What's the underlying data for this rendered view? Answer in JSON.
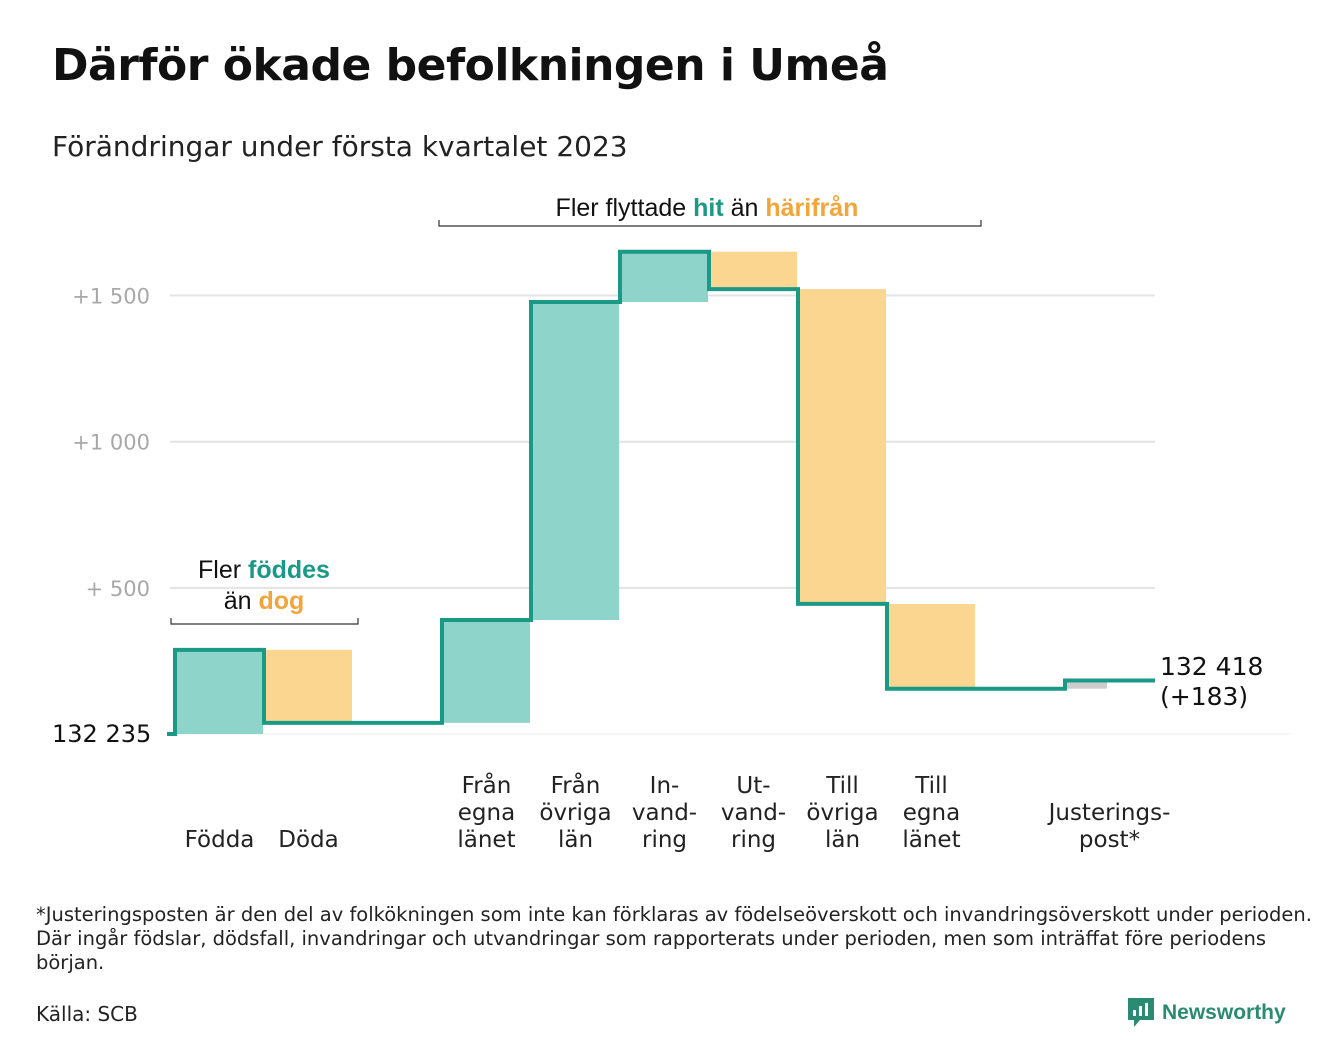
{
  "title": "Därför ökade befolkningen i Umeå",
  "subtitle": "Förändringar under första kvartalet 2023",
  "footnote": "*Justeringsposten är den del av folkökningen som inte kan förklaras av födelseöverskott och invandringsöverskott under perioden. Där ingår födslar, dödsfall, invandringar och utvandringar som rapporterats under perioden, men som inträffat före periodens början.",
  "source": "Källa: SCB",
  "brand": "Newsworthy",
  "colors": {
    "increase": "#8fd4ca",
    "decrease": "#fbd690",
    "line": "#1a9a86",
    "adjustment": "#cccccc",
    "grid": "#e3e3e3",
    "tick_text": "#a8a8a8",
    "highlight_hit": "#1a9a86",
    "highlight_from": "#f2a53a"
  },
  "chart_data": {
    "type": "waterfall",
    "baseline_label": "132 235",
    "end_label_line1": "132 418",
    "end_label_line2": "(+183)",
    "ylim": [
      0,
      1650
    ],
    "yticks": [
      {
        "value": 500,
        "label": "+ 500"
      },
      {
        "value": 1000,
        "label": "+1 000"
      },
      {
        "value": 1500,
        "label": "+1 500"
      }
    ],
    "grid": true,
    "steps": [
      {
        "label_lines": [
          "Födda"
        ],
        "start": 0,
        "end": 288,
        "kind": "increase"
      },
      {
        "label_lines": [
          "Döda"
        ],
        "start": 288,
        "end": 38,
        "kind": "decrease"
      },
      {
        "label_lines": [],
        "start": 38,
        "end": 38,
        "kind": "none"
      },
      {
        "label_lines": [
          "Från",
          "egna",
          "länet"
        ],
        "start": 38,
        "end": 390,
        "kind": "increase"
      },
      {
        "label_lines": [
          "Från",
          "övriga",
          "län"
        ],
        "start": 390,
        "end": 1478,
        "kind": "increase"
      },
      {
        "label_lines": [
          "In-",
          "vand-",
          "ring"
        ],
        "start": 1478,
        "end": 1650,
        "kind": "increase"
      },
      {
        "label_lines": [
          "Ut-",
          "vand-",
          "ring"
        ],
        "start": 1650,
        "end": 1522,
        "kind": "decrease"
      },
      {
        "label_lines": [
          "Till",
          "övriga",
          "län"
        ],
        "start": 1522,
        "end": 445,
        "kind": "decrease"
      },
      {
        "label_lines": [
          "Till",
          "egna",
          "länet"
        ],
        "start": 445,
        "end": 155,
        "kind": "decrease"
      },
      {
        "label_lines": [],
        "start": 155,
        "end": 155,
        "kind": "none"
      },
      {
        "label_lines": [
          "Justerings-",
          "post*"
        ],
        "start": 155,
        "end": 183,
        "kind": "adjustment"
      }
    ],
    "annotations": [
      {
        "id": "births",
        "lines": [
          [
            {
              "text": "Fler ",
              "style": "plain"
            },
            {
              "text": "föddes",
              "style": "hit"
            }
          ],
          [
            {
              "text": "än ",
              "style": "plain"
            },
            {
              "text": "dog",
              "style": "from"
            }
          ]
        ]
      },
      {
        "id": "migration",
        "lines": [
          [
            {
              "text": "Fler flyttade ",
              "style": "plain"
            },
            {
              "text": "hit",
              "style": "hit"
            },
            {
              "text": " än ",
              "style": "plain"
            },
            {
              "text": "härifrån",
              "style": "from"
            }
          ]
        ]
      }
    ]
  }
}
